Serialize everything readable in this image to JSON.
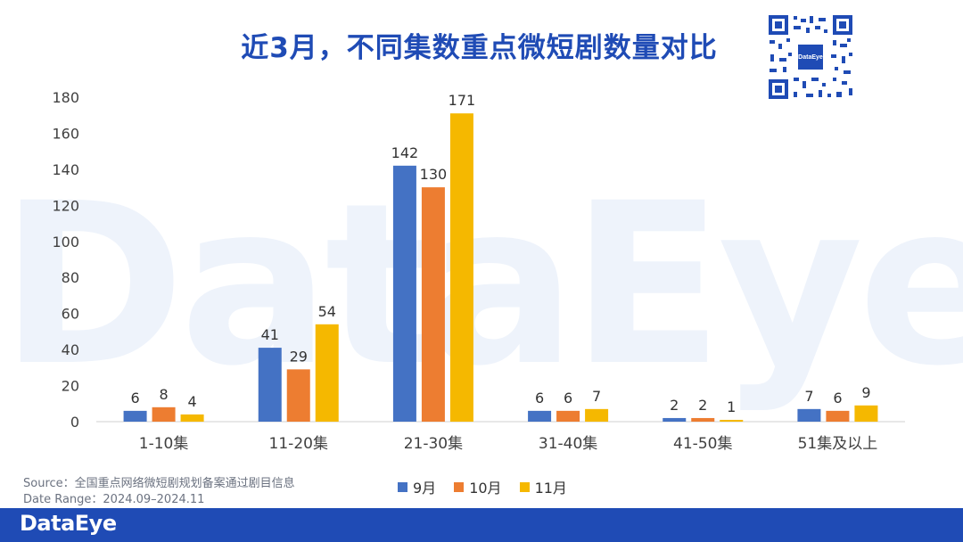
{
  "title": "近3月，不同集数重点微短剧数量对比",
  "watermark": "DataEye",
  "qr": {
    "center_text": "DataEye"
  },
  "source": {
    "line1": "Source：全国重点网络微短剧规划备案通过剧目信息",
    "line2": "Date Range：2024.09–2024.11"
  },
  "footer": {
    "logo": "DataEye"
  },
  "colors": {
    "title": "#1f4bb5",
    "footer": "#1f4bb5",
    "sep": "#4472c4",
    "oct": "#ed7d31",
    "nov": "#f5b800"
  },
  "chart_data": {
    "type": "bar",
    "title": "近3月，不同集数重点微短剧数量对比",
    "categories": [
      "1-10集",
      "11-20集",
      "21-30集",
      "31-40集",
      "41-50集",
      "51集及以上"
    ],
    "series": [
      {
        "name": "9月",
        "color": "#4472c4",
        "values": [
          6,
          41,
          142,
          6,
          2,
          7
        ]
      },
      {
        "name": "10月",
        "color": "#ed7d31",
        "values": [
          8,
          29,
          130,
          6,
          2,
          6
        ]
      },
      {
        "name": "11月",
        "color": "#f5b800",
        "values": [
          4,
          54,
          171,
          7,
          1,
          9
        ]
      }
    ],
    "ylim": [
      0,
      180
    ],
    "yticks": [
      0,
      20,
      40,
      60,
      80,
      100,
      120,
      140,
      160,
      180
    ],
    "grid": false,
    "legend": "bottom-center"
  }
}
